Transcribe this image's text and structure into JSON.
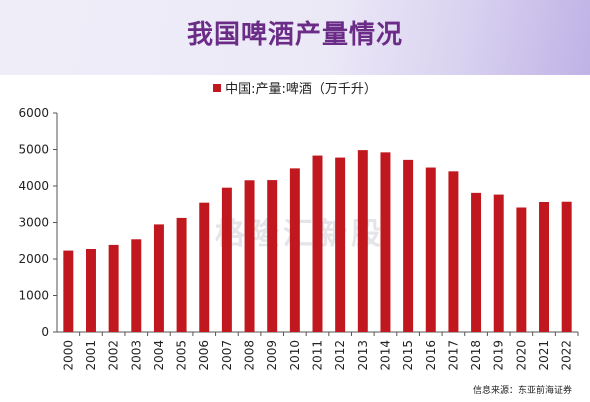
{
  "title": "我国啤酒产量情况",
  "legend": "中国:产量:啤酒（万千升）",
  "source": "信息来源：东亚前海证券",
  "watermark": "格隆汇新股",
  "colors": {
    "bar": "#c0181e",
    "title": "#6a2c86"
  },
  "chart_data": {
    "type": "bar",
    "title": "我国啤酒产量情况",
    "categories": [
      "2000",
      "2001",
      "2002",
      "2003",
      "2004",
      "2005",
      "2006",
      "2007",
      "2008",
      "2009",
      "2010",
      "2011",
      "2012",
      "2013",
      "2014",
      "2015",
      "2016",
      "2017",
      "2018",
      "2019",
      "2020",
      "2021",
      "2022"
    ],
    "series": [
      {
        "name": "中国:产量:啤酒（万千升）",
        "values": [
          2231,
          2274,
          2386,
          2540,
          2948,
          3126,
          3543,
          3954,
          4157,
          4162,
          4483,
          4834,
          4779,
          4983,
          4922,
          4716,
          4506,
          4402,
          3812,
          3765,
          3411,
          3562,
          3569
        ]
      }
    ],
    "ylim": [
      0,
      6000
    ],
    "yticks": [
      0,
      1000,
      2000,
      3000,
      4000,
      5000,
      6000
    ],
    "xlabel": "",
    "ylabel": "",
    "legend_position": "top-center",
    "grid": false
  }
}
